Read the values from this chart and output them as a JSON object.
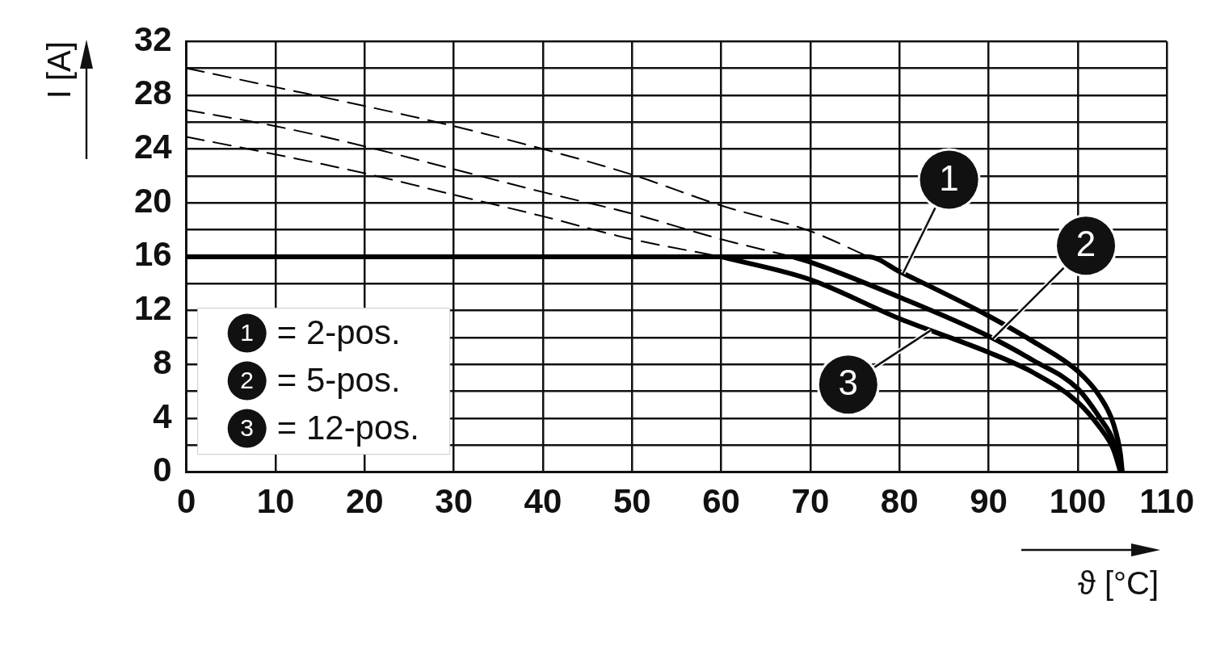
{
  "chart_data": {
    "type": "line",
    "xlabel": "ϑ [°C]",
    "ylabel": "I [A]",
    "xlim": [
      0,
      110
    ],
    "xticks": [
      0,
      10,
      20,
      30,
      40,
      50,
      60,
      70,
      80,
      90,
      100,
      110
    ],
    "ylim": [
      0,
      32
    ],
    "yticks": [
      0,
      {
        "value": 2,
        "label": null
      },
      4,
      {
        "value": 6,
        "label": null
      },
      8,
      {
        "value": 10,
        "label": null
      },
      12,
      {
        "value": 14,
        "label": null
      },
      16,
      {
        "value": 18,
        "label": null
      },
      20,
      {
        "value": 22,
        "label": null
      },
      24,
      {
        "value": 26,
        "label": null
      },
      28,
      {
        "value": 30,
        "label": null
      },
      32
    ],
    "grid": true,
    "legend": "bottom left",
    "marker": "none",
    "annotations": [
      "= 2-pos.",
      "= 5-pos.",
      "= 12-pos."
    ],
    "series": [
      {
        "name": "1",
        "color": "#000000",
        "line_style": "solid",
        "x": [
          0,
          76.5,
          80,
          90,
          95,
          100,
          102.5,
          104,
          104.8,
          105
        ],
        "values": [
          16,
          16,
          14.9,
          11.6,
          9.7,
          7.5,
          5.6,
          3.6,
          1.3,
          0
        ]
      },
      {
        "name": "2",
        "color": "#000000",
        "line_style": "solid",
        "x": [
          68,
          70,
          80,
          90,
          95,
          100,
          102.5,
          104,
          104.9
        ],
        "values": [
          16,
          15.6,
          13.0,
          10.1,
          8.3,
          6.2,
          4.0,
          2.3,
          0
        ]
      },
      {
        "name": "3",
        "color": "#000000",
        "line_style": "solid",
        "x": [
          60,
          70,
          80,
          90,
          95,
          100,
          102.5,
          104,
          104.8
        ],
        "values": [
          16,
          14.3,
          11.4,
          8.9,
          7.4,
          5.2,
          3.3,
          1.7,
          0
        ]
      },
      {
        "color": "#000000",
        "line_style": "dashed",
        "x": [
          0,
          10,
          20,
          30,
          40,
          50,
          60,
          70,
          76.5
        ],
        "values": [
          30,
          28.6,
          27.2,
          25.7,
          24.0,
          22.1,
          19.8,
          17.9,
          16
        ]
      },
      {
        "color": "#000000",
        "line_style": "dashed",
        "x": [
          0,
          10,
          20,
          30,
          40,
          50,
          60,
          68
        ],
        "values": [
          26.9,
          25.7,
          24.2,
          22.5,
          20.8,
          19.2,
          17.3,
          16
        ]
      },
      {
        "color": "#000000",
        "line_style": "dashed",
        "x": [
          0,
          10,
          20,
          30,
          40,
          50,
          60
        ],
        "values": [
          24.9,
          23.6,
          22.2,
          20.6,
          19.0,
          17.3,
          16
        ]
      }
    ]
  }
}
